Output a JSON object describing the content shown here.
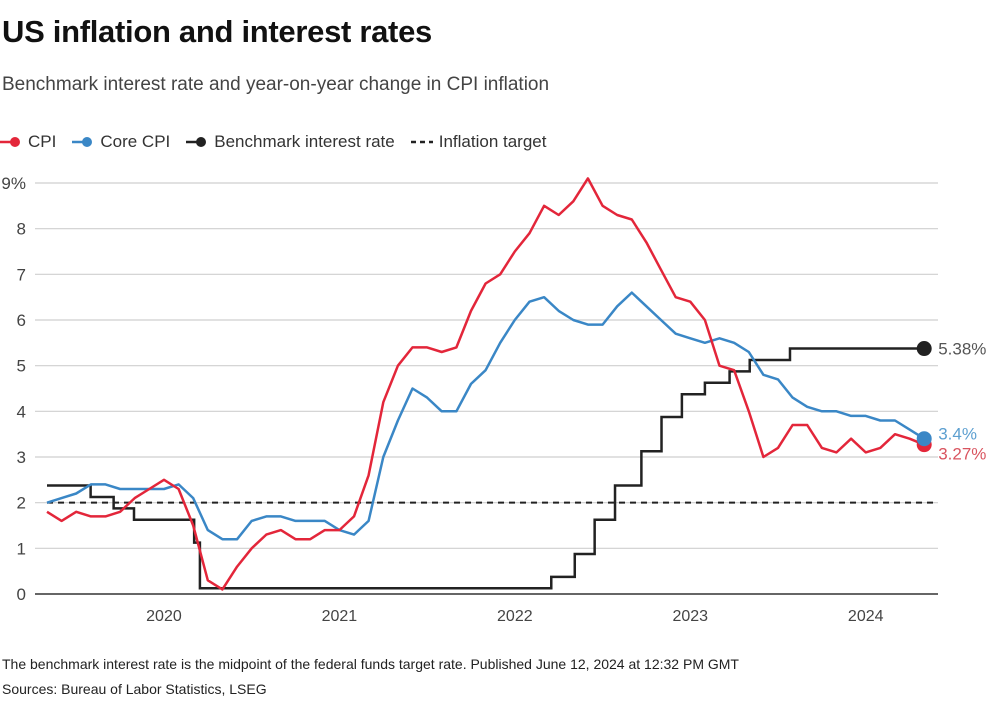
{
  "title": "US inflation and interest rates",
  "subtitle": "Benchmark interest rate and year-on-year change in CPI inflation",
  "legend": [
    {
      "label": "CPI",
      "color": "#e3263a",
      "style": "line-dot"
    },
    {
      "label": "Core CPI",
      "color": "#3a87c6",
      "style": "line-dot"
    },
    {
      "label": "Benchmark interest rate",
      "color": "#222222",
      "style": "line-dot"
    },
    {
      "label": "Inflation target",
      "color": "#222222",
      "style": "dashed"
    }
  ],
  "footer": {
    "note": "The benchmark interest rate is the midpoint of the federal funds target rate. Published June 12, 2024 at 12:32 PM GMT",
    "sources": "Sources: Bureau of Labor Statistics, LSEG"
  },
  "chart_data": {
    "type": "line",
    "title": "US inflation and interest rates",
    "ylim": [
      0,
      9
    ],
    "yticks": [
      "0",
      "1",
      "2",
      "3",
      "4",
      "5",
      "6",
      "7",
      "8",
      "9%"
    ],
    "xticks": [
      "2020",
      "2021",
      "2022",
      "2023",
      "2024"
    ],
    "x_start": "2019-05",
    "x_end": "2024-05",
    "grid": true,
    "legend_position": "top-left",
    "series": [
      {
        "name": "CPI",
        "color": "#e3263a",
        "end_label": "3.27%",
        "label_color": "#d9545f",
        "values": [
          1.8,
          1.6,
          1.8,
          1.7,
          1.7,
          1.8,
          2.1,
          2.3,
          2.5,
          2.3,
          1.5,
          0.3,
          0.1,
          0.6,
          1.0,
          1.3,
          1.4,
          1.2,
          1.2,
          1.4,
          1.4,
          1.7,
          2.6,
          4.2,
          5.0,
          5.4,
          5.4,
          5.3,
          5.4,
          6.2,
          6.8,
          7.0,
          7.5,
          7.9,
          8.5,
          8.3,
          8.6,
          9.1,
          8.5,
          8.3,
          8.2,
          7.7,
          7.1,
          6.5,
          6.4,
          6.0,
          5.0,
          4.9,
          4.0,
          3.0,
          3.2,
          3.7,
          3.7,
          3.2,
          3.1,
          3.4,
          3.1,
          3.2,
          3.5,
          3.4,
          3.27
        ]
      },
      {
        "name": "Core CPI",
        "color": "#3a87c6",
        "end_label": "3.4%",
        "label_color": "#5c9fd0",
        "values": [
          2.0,
          2.1,
          2.2,
          2.4,
          2.4,
          2.3,
          2.3,
          2.3,
          2.3,
          2.4,
          2.1,
          1.4,
          1.2,
          1.2,
          1.6,
          1.7,
          1.7,
          1.6,
          1.6,
          1.6,
          1.4,
          1.3,
          1.6,
          3.0,
          3.8,
          4.5,
          4.3,
          4.0,
          4.0,
          4.6,
          4.9,
          5.5,
          6.0,
          6.4,
          6.5,
          6.2,
          6.0,
          5.9,
          5.9,
          6.3,
          6.6,
          6.3,
          6.0,
          5.7,
          5.6,
          5.5,
          5.6,
          5.5,
          5.3,
          4.8,
          4.7,
          4.3,
          4.1,
          4.0,
          4.0,
          3.9,
          3.9,
          3.8,
          3.8,
          3.6,
          3.4
        ]
      },
      {
        "name": "Benchmark interest rate",
        "color": "#222222",
        "end_label": "5.38%",
        "label_color": "#555555",
        "steps": [
          [
            "2019-05-01",
            2.375
          ],
          [
            "2019-07-31",
            2.125
          ],
          [
            "2019-09-18",
            1.875
          ],
          [
            "2019-10-30",
            1.625
          ],
          [
            "2020-03-03",
            1.125
          ],
          [
            "2020-03-15",
            0.125
          ],
          [
            "2022-03-16",
            0.375
          ],
          [
            "2022-05-04",
            0.875
          ],
          [
            "2022-06-15",
            1.625
          ],
          [
            "2022-07-27",
            2.375
          ],
          [
            "2022-09-21",
            3.125
          ],
          [
            "2022-11-02",
            3.875
          ],
          [
            "2022-12-14",
            4.375
          ],
          [
            "2023-02-01",
            4.625
          ],
          [
            "2023-03-22",
            4.875
          ],
          [
            "2023-05-03",
            5.125
          ],
          [
            "2023-07-26",
            5.375
          ],
          [
            "2024-05-01",
            5.375
          ]
        ]
      },
      {
        "name": "Inflation target",
        "color": "#222222",
        "dashed": true,
        "value": 2
      }
    ]
  }
}
